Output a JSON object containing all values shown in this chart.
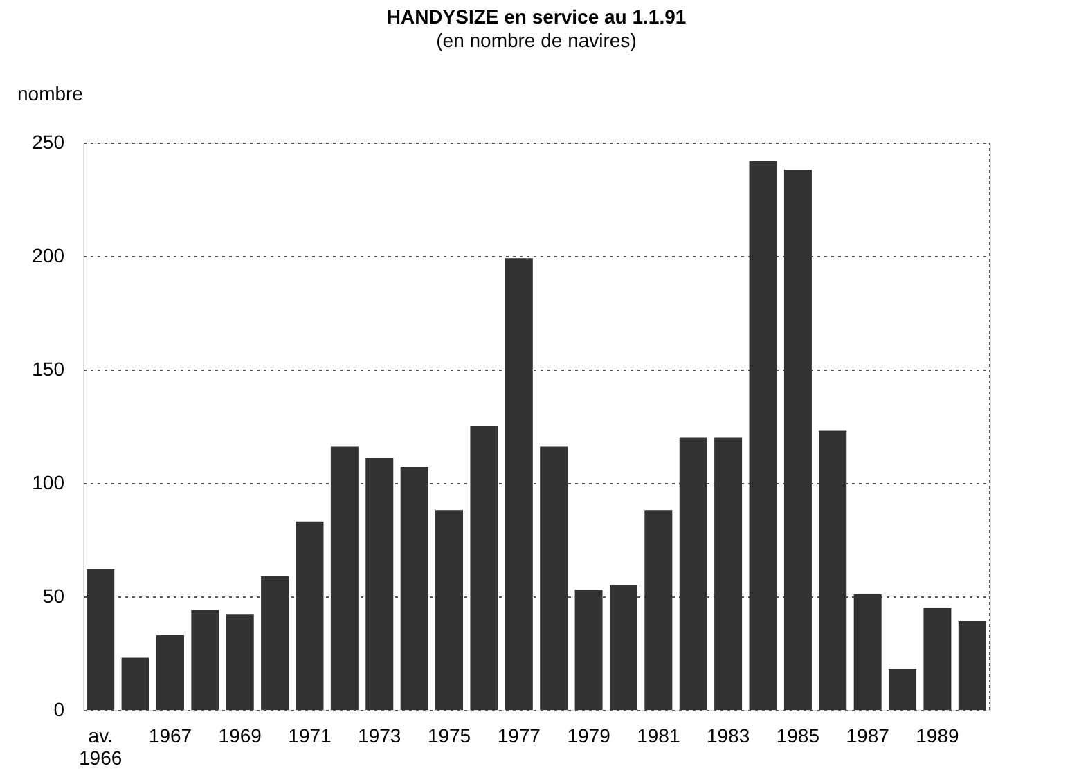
{
  "chart_data": {
    "type": "bar",
    "title": "HANDYSIZE en service au 1.1.91",
    "subtitle": "(en nombre de navires)",
    "ylabel": "nombre",
    "categories": [
      "av. 1966",
      null,
      "1967",
      null,
      "1969",
      null,
      "1971",
      null,
      "1973",
      null,
      "1975",
      null,
      "1977",
      null,
      "1979",
      null,
      "1981",
      null,
      "1983",
      null,
      "1985",
      null,
      "1987",
      null,
      "1989",
      null
    ],
    "values": [
      62,
      23,
      33,
      44,
      42,
      59,
      83,
      116,
      111,
      107,
      88,
      125,
      199,
      116,
      53,
      55,
      88,
      120,
      120,
      242,
      238,
      123,
      51,
      18,
      45,
      39
    ],
    "color": "#333333",
    "ylim": [
      0,
      250
    ],
    "yticks": [
      0,
      50,
      100,
      150,
      200,
      250
    ],
    "grid": "y"
  }
}
